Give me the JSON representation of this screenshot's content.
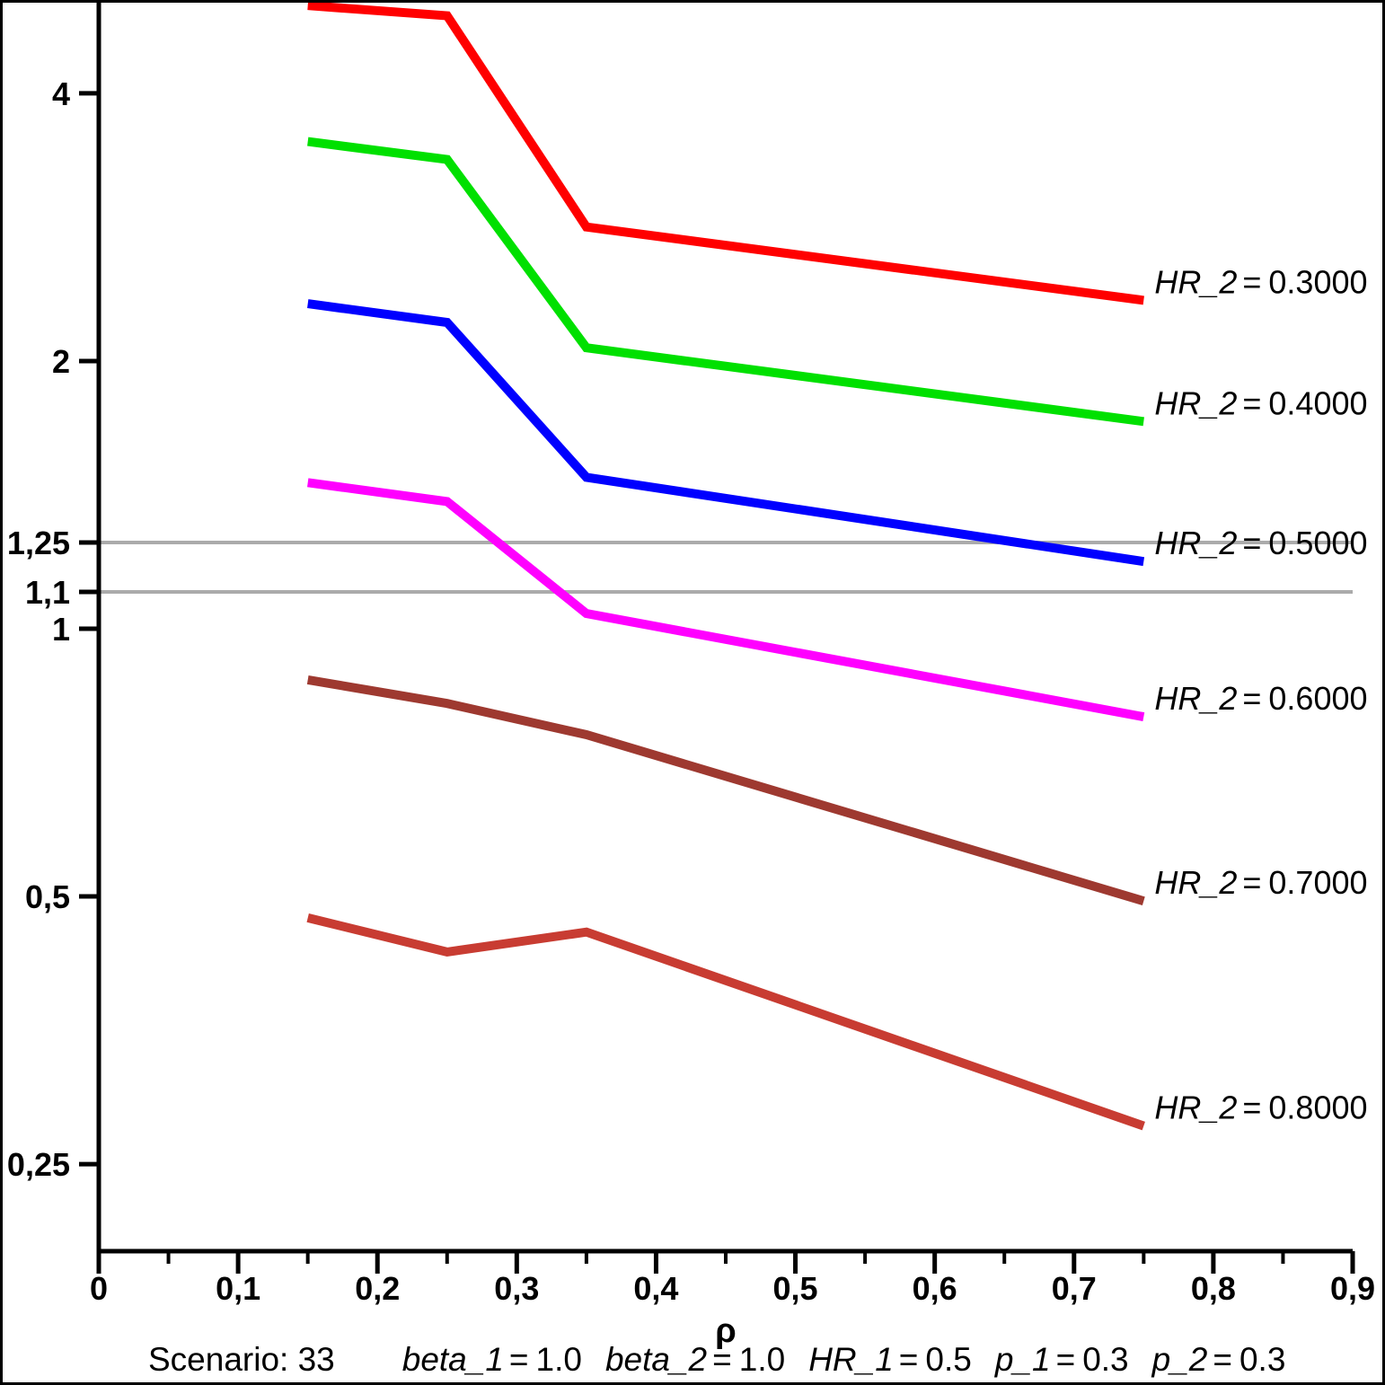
{
  "chart_data": {
    "type": "line",
    "title": "",
    "xlabel": "ρ",
    "x_axis": {
      "min": 0,
      "max": 0.9,
      "minor_tick_step": 0.05,
      "ticks": [
        {
          "value": 0.0,
          "label": "0"
        },
        {
          "value": 0.1,
          "label": "0,1"
        },
        {
          "value": 0.2,
          "label": "0,2"
        },
        {
          "value": 0.3,
          "label": "0,3"
        },
        {
          "value": 0.4,
          "label": "0,4"
        },
        {
          "value": 0.5,
          "label": "0,5"
        },
        {
          "value": 0.6,
          "label": "0,6"
        },
        {
          "value": 0.7,
          "label": "0,7"
        },
        {
          "value": 0.8,
          "label": "0,8"
        },
        {
          "value": 0.9,
          "label": "0,9"
        }
      ]
    },
    "y_axis": {
      "scale": "log",
      "min": 0.2,
      "max": 5.0,
      "ticks": [
        {
          "value": 4.0,
          "label": "4"
        },
        {
          "value": 2.0,
          "label": "2"
        },
        {
          "value": 1.25,
          "label": "1,25"
        },
        {
          "value": 1.1,
          "label": "1,1"
        },
        {
          "value": 1.0,
          "label": "1"
        },
        {
          "value": 0.5,
          "label": "0,5"
        },
        {
          "value": 0.25,
          "label": "0,25"
        }
      ]
    },
    "reference_lines": [
      {
        "y": 1.25,
        "color": "#ABABAB"
      },
      {
        "y": 1.1,
        "color": "#ABABAB"
      }
    ],
    "x": [
      0.15,
      0.25,
      0.35,
      0.75
    ],
    "series": [
      {
        "label": {
          "var": "HR_2",
          "eq": "=",
          "value": "0.3000"
        },
        "color": "#FF0000",
        "values": [
          5.02,
          4.89,
          2.83,
          2.34
        ]
      },
      {
        "label": {
          "var": "HR_2",
          "eq": "=",
          "value": "0.4000"
        },
        "color": "#00E000",
        "values": [
          3.53,
          3.37,
          2.07,
          1.71
        ]
      },
      {
        "label": {
          "var": "HR_2",
          "eq": "=",
          "value": "0.5000"
        },
        "color": "#0000FF",
        "values": [
          2.32,
          2.21,
          1.48,
          1.19
        ]
      },
      {
        "label": {
          "var": "HR_2",
          "eq": "=",
          "value": "0.6000"
        },
        "color": "#FF00FF",
        "values": [
          1.46,
          1.39,
          1.04,
          0.796
        ]
      },
      {
        "label": {
          "var": "HR_2",
          "eq": "=",
          "value": "0.7000"
        },
        "color": "#9E3930",
        "values": [
          0.876,
          0.824,
          0.76,
          0.494
        ]
      },
      {
        "label": {
          "var": "HR_2",
          "eq": "=",
          "value": "0.8000"
        },
        "color": "#C83C32",
        "values": [
          0.473,
          0.433,
          0.456,
          0.276
        ]
      }
    ],
    "legend_position": "right-of-line-end",
    "grid": "off"
  },
  "footnote": {
    "scenario": "Scenario: 33",
    "params": [
      {
        "name": "beta_1",
        "eq": "=",
        "value": "1.0"
      },
      {
        "name": "beta_2",
        "eq": "=",
        "value": "1.0"
      },
      {
        "name": "HR_1",
        "eq": "=",
        "value": "0.5"
      },
      {
        "name": "p_1",
        "eq": "=",
        "value": "0.3"
      },
      {
        "name": "p_2",
        "eq": "=",
        "value": "0.3"
      }
    ]
  }
}
